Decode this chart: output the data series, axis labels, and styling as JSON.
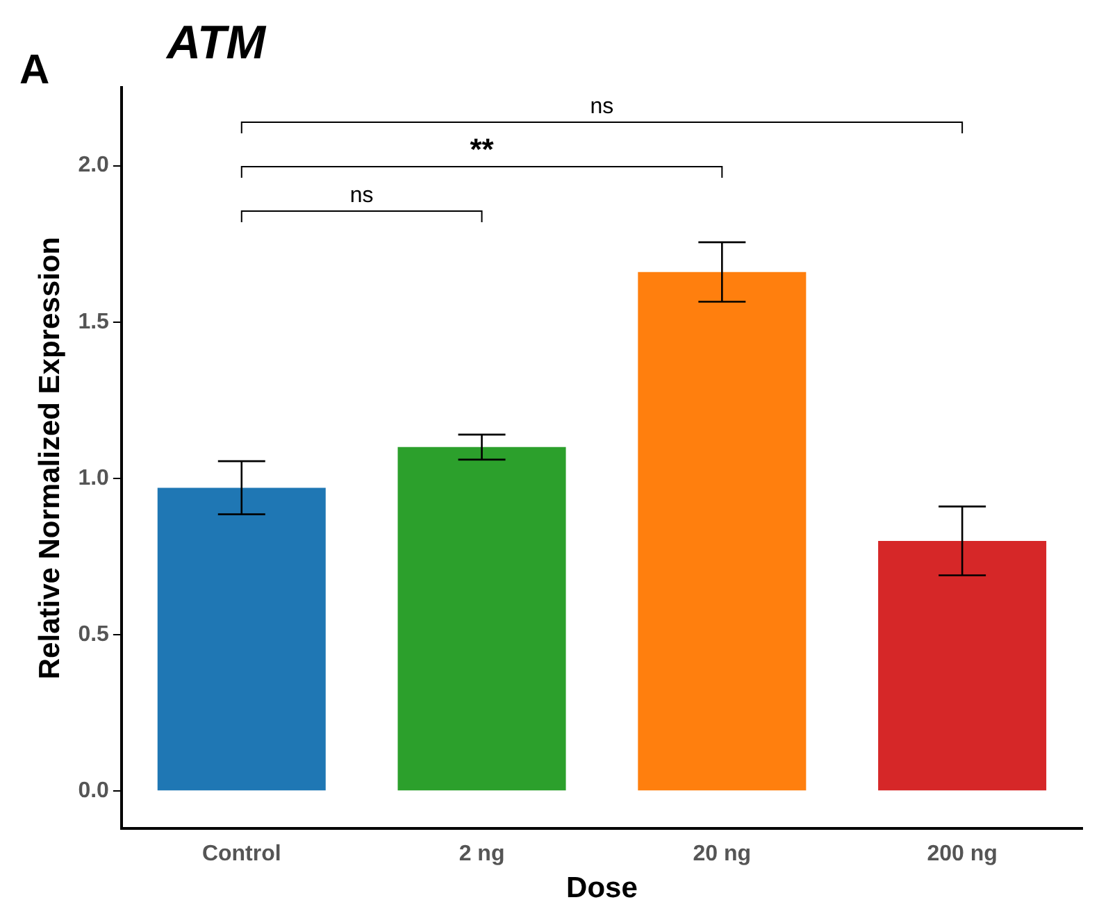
{
  "chart_data": {
    "type": "bar",
    "title": "ATM",
    "xlabel": "Dose",
    "ylabel": "Relative Normalized Expression",
    "categories": [
      "Control",
      "2 ng",
      "20 ng",
      "200 ng"
    ],
    "values": [
      0.97,
      1.1,
      1.66,
      0.8
    ],
    "colors": [
      "#1f77b4",
      "#2ca02c",
      "#ff7f0e",
      "#d62728"
    ],
    "errors": [
      0.085,
      0.04,
      0.095,
      0.11
    ],
    "ylim": [
      -0.12,
      2.25
    ],
    "yticks": [
      {
        "value": 0,
        "label": "0.0"
      },
      {
        "value": 0.5,
        "label": "0.5"
      },
      {
        "value": 1,
        "label": "1.0"
      },
      {
        "value": 1.5,
        "label": "1.5"
      },
      {
        "value": 2,
        "label": "2.0"
      }
    ],
    "grid": false,
    "legend": false,
    "annotations": [
      "A",
      "ns",
      "**",
      "ns"
    ]
  }
}
